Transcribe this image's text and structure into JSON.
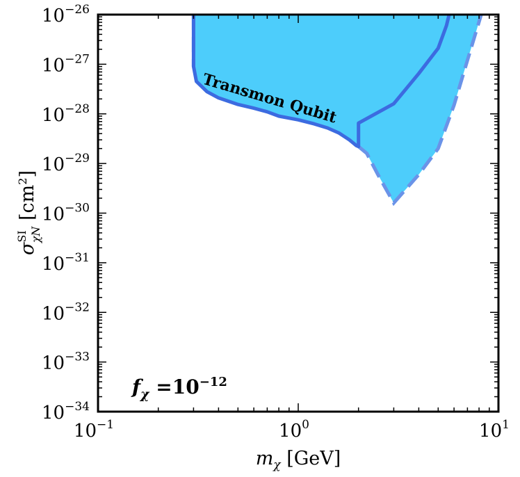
{
  "chart_data": {
    "type": "area",
    "xscale": "log",
    "yscale": "log",
    "xlim": [
      0.1,
      10
    ],
    "ylim": [
      1e-34,
      1e-26
    ],
    "xlabel": "m_χ [GeV]",
    "ylabel": "σ_χN^SI [cm²]",
    "grid": false,
    "x_ticks": [
      {
        "base": "10",
        "exp": "−1",
        "value": 0.1
      },
      {
        "base": "10",
        "exp": "0",
        "value": 1
      },
      {
        "base": "10",
        "exp": "1",
        "value": 10
      }
    ],
    "y_ticks": [
      {
        "base": "10",
        "exp": "−26",
        "value": 1e-26
      },
      {
        "base": "10",
        "exp": "−27",
        "value": 1e-27
      },
      {
        "base": "10",
        "exp": "−28",
        "value": 1e-28
      },
      {
        "base": "10",
        "exp": "−29",
        "value": 1e-29
      },
      {
        "base": "10",
        "exp": "−30",
        "value": 1e-30
      },
      {
        "base": "10",
        "exp": "−31",
        "value": 1e-31
      },
      {
        "base": "10",
        "exp": "−32",
        "value": 1e-32
      },
      {
        "base": "10",
        "exp": "−33",
        "value": 1e-33
      },
      {
        "base": "10",
        "exp": "−34",
        "value": 1e-34
      }
    ],
    "region_label": "Transmon Qubit",
    "annotation": {
      "prefix": "f",
      "sub": "χ",
      "mid": " =10",
      "exp": "−12"
    },
    "fill_color": "#4dcdfb",
    "solid_color": "#3c6be0",
    "dashed_color": "#6a93e8",
    "solid_boundary": {
      "x": [
        0.3,
        0.3,
        0.31,
        0.35,
        0.4,
        0.5,
        0.6,
        0.7,
        0.8,
        1.0,
        1.2,
        1.4,
        1.6,
        1.8,
        1.95,
        2.0,
        2.0,
        3.0,
        4.0,
        5.0,
        5.5,
        6.0,
        6.8
      ],
      "y": [
        1e-26,
        9e-28,
        4.5e-28,
        2.8e-28,
        2.1e-28,
        1.55e-28,
        1.3e-28,
        1.1e-28,
        9e-29,
        7.6e-29,
        6.3e-29,
        5.2e-29,
        4.1e-29,
        3e-29,
        2.3e-29,
        2.2e-29,
        6.5e-29,
        1.6e-28,
        6.5e-28,
        2.1e-27,
        6e-27,
        2.5e-26,
        1e-26
      ]
    },
    "dashed_boundary": {
      "x": [
        0.3,
        0.3,
        0.3
      ],
      "y": [
        1e-26,
        3.5e-27,
        9e-28
      ],
      "x2": [
        2.0,
        2.2,
        2.5,
        3.0,
        4.0,
        5.0,
        6.0,
        7.0,
        8.2
      ],
      "y2": [
        2.2e-29,
        1.6e-29,
        6e-30,
        1.6e-30,
        6e-30,
        2e-29,
        1.5e-28,
        1.2e-27,
        1e-26
      ]
    },
    "fill_polygon": {
      "x": [
        0.3,
        0.3,
        0.31,
        0.35,
        0.4,
        0.5,
        0.6,
        0.7,
        0.8,
        1.0,
        1.2,
        1.4,
        1.6,
        1.8,
        1.95,
        2.0,
        2.2,
        2.5,
        3.0,
        4.0,
        5.0,
        6.0,
        7.0,
        8.2
      ],
      "y": [
        1e-26,
        9e-28,
        4.5e-28,
        2.8e-28,
        2.1e-28,
        1.55e-28,
        1.3e-28,
        1.1e-28,
        9e-29,
        7.6e-29,
        6.3e-29,
        5.2e-29,
        4.1e-29,
        3e-29,
        2.3e-29,
        2.2e-29,
        1.6e-29,
        6e-30,
        1.6e-30,
        6e-30,
        2e-29,
        1.5e-28,
        1.2e-27,
        1e-26
      ]
    }
  }
}
